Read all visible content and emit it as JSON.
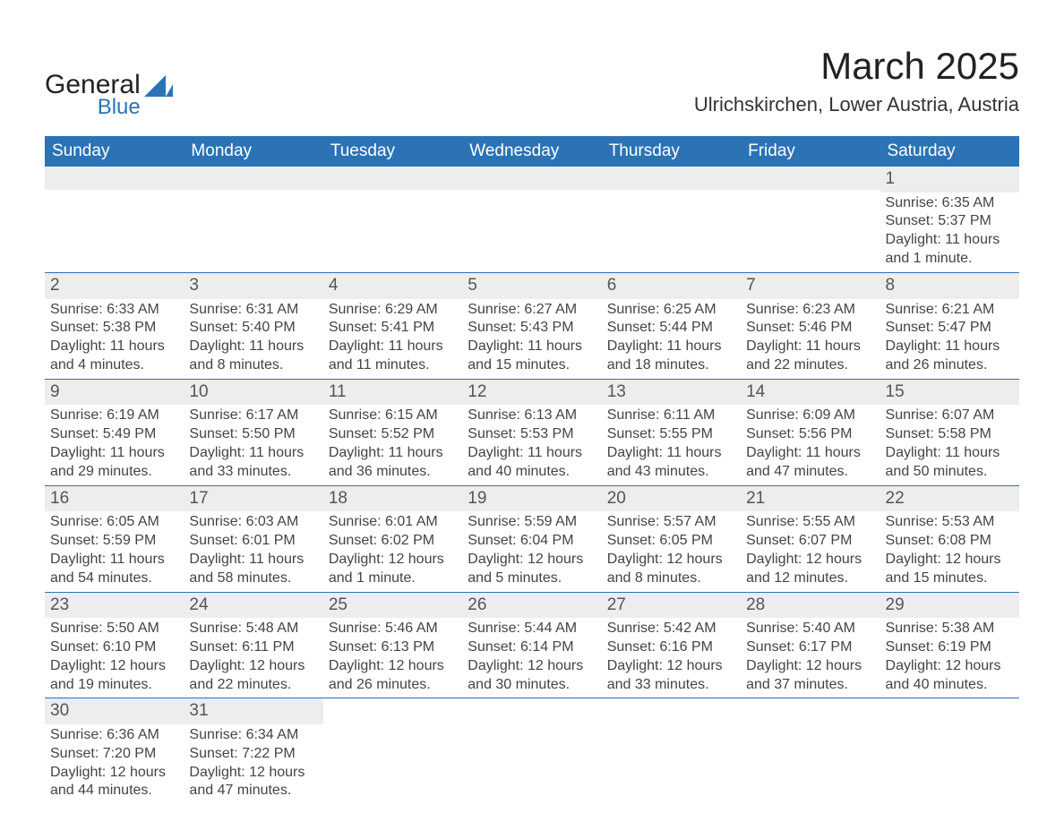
{
  "logo": {
    "text1": "General",
    "text2": "Blue",
    "color1": "#222222",
    "color2": "#2b73b5"
  },
  "title": "March 2025",
  "location": "Ulrichskirchen, Lower Austria, Austria",
  "colors": {
    "header_bg": "#2b73b5",
    "header_text": "#ffffff",
    "daybar_bg": "#ededed",
    "daybar_text": "#555555",
    "body_text": "#444444",
    "rule": "#2b73b5",
    "background": "#ffffff"
  },
  "typography": {
    "title_fontsize": 42,
    "location_fontsize": 22,
    "dow_fontsize": 19,
    "daynum_fontsize": 19,
    "body_fontsize": 16
  },
  "dow": [
    "Sunday",
    "Monday",
    "Tuesday",
    "Wednesday",
    "Thursday",
    "Friday",
    "Saturday"
  ],
  "weeks": [
    [
      {
        "n": "",
        "sr": "",
        "ss": "",
        "dl": ""
      },
      {
        "n": "",
        "sr": "",
        "ss": "",
        "dl": ""
      },
      {
        "n": "",
        "sr": "",
        "ss": "",
        "dl": ""
      },
      {
        "n": "",
        "sr": "",
        "ss": "",
        "dl": ""
      },
      {
        "n": "",
        "sr": "",
        "ss": "",
        "dl": ""
      },
      {
        "n": "",
        "sr": "",
        "ss": "",
        "dl": ""
      },
      {
        "n": "1",
        "sr": "Sunrise: 6:35 AM",
        "ss": "Sunset: 5:37 PM",
        "dl": "Daylight: 11 hours and 1 minute."
      }
    ],
    [
      {
        "n": "2",
        "sr": "Sunrise: 6:33 AM",
        "ss": "Sunset: 5:38 PM",
        "dl": "Daylight: 11 hours and 4 minutes."
      },
      {
        "n": "3",
        "sr": "Sunrise: 6:31 AM",
        "ss": "Sunset: 5:40 PM",
        "dl": "Daylight: 11 hours and 8 minutes."
      },
      {
        "n": "4",
        "sr": "Sunrise: 6:29 AM",
        "ss": "Sunset: 5:41 PM",
        "dl": "Daylight: 11 hours and 11 minutes."
      },
      {
        "n": "5",
        "sr": "Sunrise: 6:27 AM",
        "ss": "Sunset: 5:43 PM",
        "dl": "Daylight: 11 hours and 15 minutes."
      },
      {
        "n": "6",
        "sr": "Sunrise: 6:25 AM",
        "ss": "Sunset: 5:44 PM",
        "dl": "Daylight: 11 hours and 18 minutes."
      },
      {
        "n": "7",
        "sr": "Sunrise: 6:23 AM",
        "ss": "Sunset: 5:46 PM",
        "dl": "Daylight: 11 hours and 22 minutes."
      },
      {
        "n": "8",
        "sr": "Sunrise: 6:21 AM",
        "ss": "Sunset: 5:47 PM",
        "dl": "Daylight: 11 hours and 26 minutes."
      }
    ],
    [
      {
        "n": "9",
        "sr": "Sunrise: 6:19 AM",
        "ss": "Sunset: 5:49 PM",
        "dl": "Daylight: 11 hours and 29 minutes."
      },
      {
        "n": "10",
        "sr": "Sunrise: 6:17 AM",
        "ss": "Sunset: 5:50 PM",
        "dl": "Daylight: 11 hours and 33 minutes."
      },
      {
        "n": "11",
        "sr": "Sunrise: 6:15 AM",
        "ss": "Sunset: 5:52 PM",
        "dl": "Daylight: 11 hours and 36 minutes."
      },
      {
        "n": "12",
        "sr": "Sunrise: 6:13 AM",
        "ss": "Sunset: 5:53 PM",
        "dl": "Daylight: 11 hours and 40 minutes."
      },
      {
        "n": "13",
        "sr": "Sunrise: 6:11 AM",
        "ss": "Sunset: 5:55 PM",
        "dl": "Daylight: 11 hours and 43 minutes."
      },
      {
        "n": "14",
        "sr": "Sunrise: 6:09 AM",
        "ss": "Sunset: 5:56 PM",
        "dl": "Daylight: 11 hours and 47 minutes."
      },
      {
        "n": "15",
        "sr": "Sunrise: 6:07 AM",
        "ss": "Sunset: 5:58 PM",
        "dl": "Daylight: 11 hours and 50 minutes."
      }
    ],
    [
      {
        "n": "16",
        "sr": "Sunrise: 6:05 AM",
        "ss": "Sunset: 5:59 PM",
        "dl": "Daylight: 11 hours and 54 minutes."
      },
      {
        "n": "17",
        "sr": "Sunrise: 6:03 AM",
        "ss": "Sunset: 6:01 PM",
        "dl": "Daylight: 11 hours and 58 minutes."
      },
      {
        "n": "18",
        "sr": "Sunrise: 6:01 AM",
        "ss": "Sunset: 6:02 PM",
        "dl": "Daylight: 12 hours and 1 minute."
      },
      {
        "n": "19",
        "sr": "Sunrise: 5:59 AM",
        "ss": "Sunset: 6:04 PM",
        "dl": "Daylight: 12 hours and 5 minutes."
      },
      {
        "n": "20",
        "sr": "Sunrise: 5:57 AM",
        "ss": "Sunset: 6:05 PM",
        "dl": "Daylight: 12 hours and 8 minutes."
      },
      {
        "n": "21",
        "sr": "Sunrise: 5:55 AM",
        "ss": "Sunset: 6:07 PM",
        "dl": "Daylight: 12 hours and 12 minutes."
      },
      {
        "n": "22",
        "sr": "Sunrise: 5:53 AM",
        "ss": "Sunset: 6:08 PM",
        "dl": "Daylight: 12 hours and 15 minutes."
      }
    ],
    [
      {
        "n": "23",
        "sr": "Sunrise: 5:50 AM",
        "ss": "Sunset: 6:10 PM",
        "dl": "Daylight: 12 hours and 19 minutes."
      },
      {
        "n": "24",
        "sr": "Sunrise: 5:48 AM",
        "ss": "Sunset: 6:11 PM",
        "dl": "Daylight: 12 hours and 22 minutes."
      },
      {
        "n": "25",
        "sr": "Sunrise: 5:46 AM",
        "ss": "Sunset: 6:13 PM",
        "dl": "Daylight: 12 hours and 26 minutes."
      },
      {
        "n": "26",
        "sr": "Sunrise: 5:44 AM",
        "ss": "Sunset: 6:14 PM",
        "dl": "Daylight: 12 hours and 30 minutes."
      },
      {
        "n": "27",
        "sr": "Sunrise: 5:42 AM",
        "ss": "Sunset: 6:16 PM",
        "dl": "Daylight: 12 hours and 33 minutes."
      },
      {
        "n": "28",
        "sr": "Sunrise: 5:40 AM",
        "ss": "Sunset: 6:17 PM",
        "dl": "Daylight: 12 hours and 37 minutes."
      },
      {
        "n": "29",
        "sr": "Sunrise: 5:38 AM",
        "ss": "Sunset: 6:19 PM",
        "dl": "Daylight: 12 hours and 40 minutes."
      }
    ],
    [
      {
        "n": "30",
        "sr": "Sunrise: 6:36 AM",
        "ss": "Sunset: 7:20 PM",
        "dl": "Daylight: 12 hours and 44 minutes."
      },
      {
        "n": "31",
        "sr": "Sunrise: 6:34 AM",
        "ss": "Sunset: 7:22 PM",
        "dl": "Daylight: 12 hours and 47 minutes."
      },
      {
        "n": "",
        "sr": "",
        "ss": "",
        "dl": ""
      },
      {
        "n": "",
        "sr": "",
        "ss": "",
        "dl": ""
      },
      {
        "n": "",
        "sr": "",
        "ss": "",
        "dl": ""
      },
      {
        "n": "",
        "sr": "",
        "ss": "",
        "dl": ""
      },
      {
        "n": "",
        "sr": "",
        "ss": "",
        "dl": ""
      }
    ]
  ]
}
